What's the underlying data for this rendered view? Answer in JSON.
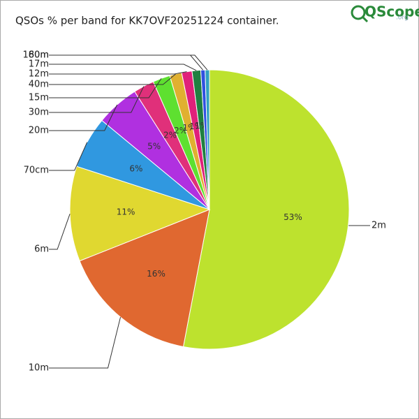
{
  "chart_data": {
    "type": "pie",
    "title": "QSOs % per band for KK7OVF20251224 container.",
    "logo": {
      "name": "QScope",
      "suffix": ".org"
    },
    "categories": [
      "2m",
      "10m",
      "6m",
      "70cm",
      "20m",
      "30m",
      "15m",
      "40m",
      "12m",
      "17m",
      "80m",
      "160m"
    ],
    "values": [
      53,
      16,
      11,
      6,
      5,
      2.4,
      2,
      1.4,
      1.2,
      1,
      0.5,
      0.5
    ],
    "value_labels": [
      "53%",
      "16%",
      "11%",
      "6%",
      "5%",
      "2%",
      "2%",
      "1%",
      "1%",
      "1%",
      null,
      null
    ],
    "colors": [
      "#bde22e",
      "#e06830",
      "#e0d830",
      "#3098e0",
      "#b030e0",
      "#e0307a",
      "#5ee030",
      "#e0b030",
      "#e0207a",
      "#208040",
      "#3050e0",
      "#30a0c0"
    ]
  }
}
